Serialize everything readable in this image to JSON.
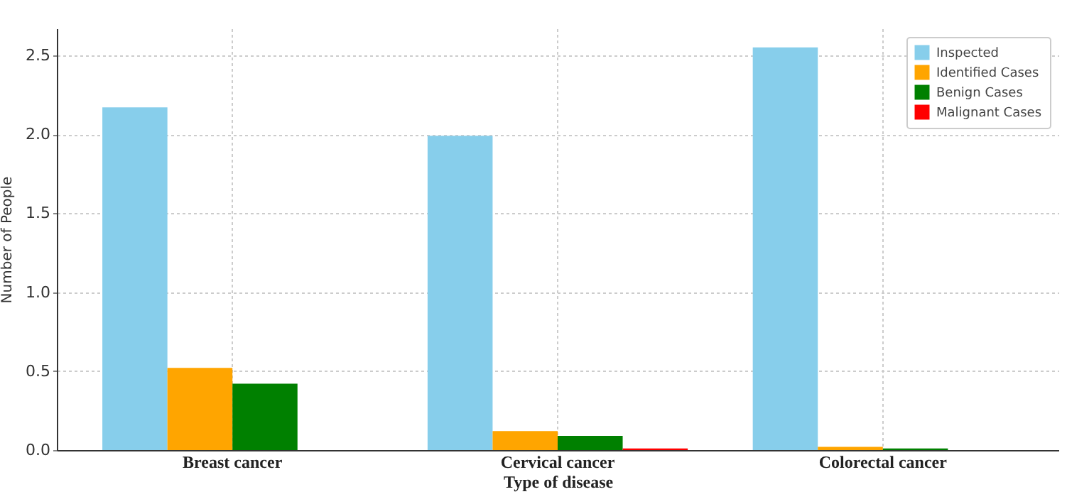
{
  "chart_data": {
    "type": "bar",
    "xlabel": "Type of disease",
    "ylabel": "Number of People",
    "categories": [
      "Breast cancer",
      "Cervical cancer",
      "Colorectal cancer"
    ],
    "series": [
      {
        "name": "Inspected",
        "color": "#87ceeb",
        "values": [
          2.17,
          1.99,
          2.55
        ]
      },
      {
        "name": "Identified Cases",
        "color": "#ffa500",
        "values": [
          0.52,
          0.12,
          0.02
        ]
      },
      {
        "name": "Benign Cases",
        "color": "#008000",
        "values": [
          0.42,
          0.09,
          0.01
        ]
      },
      {
        "name": "Malignant Cases",
        "color": "#ff0000",
        "values": [
          0,
          0.01,
          0
        ]
      }
    ],
    "ylim": [
      0,
      2.67
    ],
    "yticks": [
      {
        "value": 0,
        "label": "0.0"
      },
      0.5,
      {
        "value": 1,
        "label": "1.0"
      },
      1.5,
      {
        "value": 2,
        "label": "2.0"
      },
      2.5
    ],
    "grid": true,
    "legend": "top right"
  }
}
